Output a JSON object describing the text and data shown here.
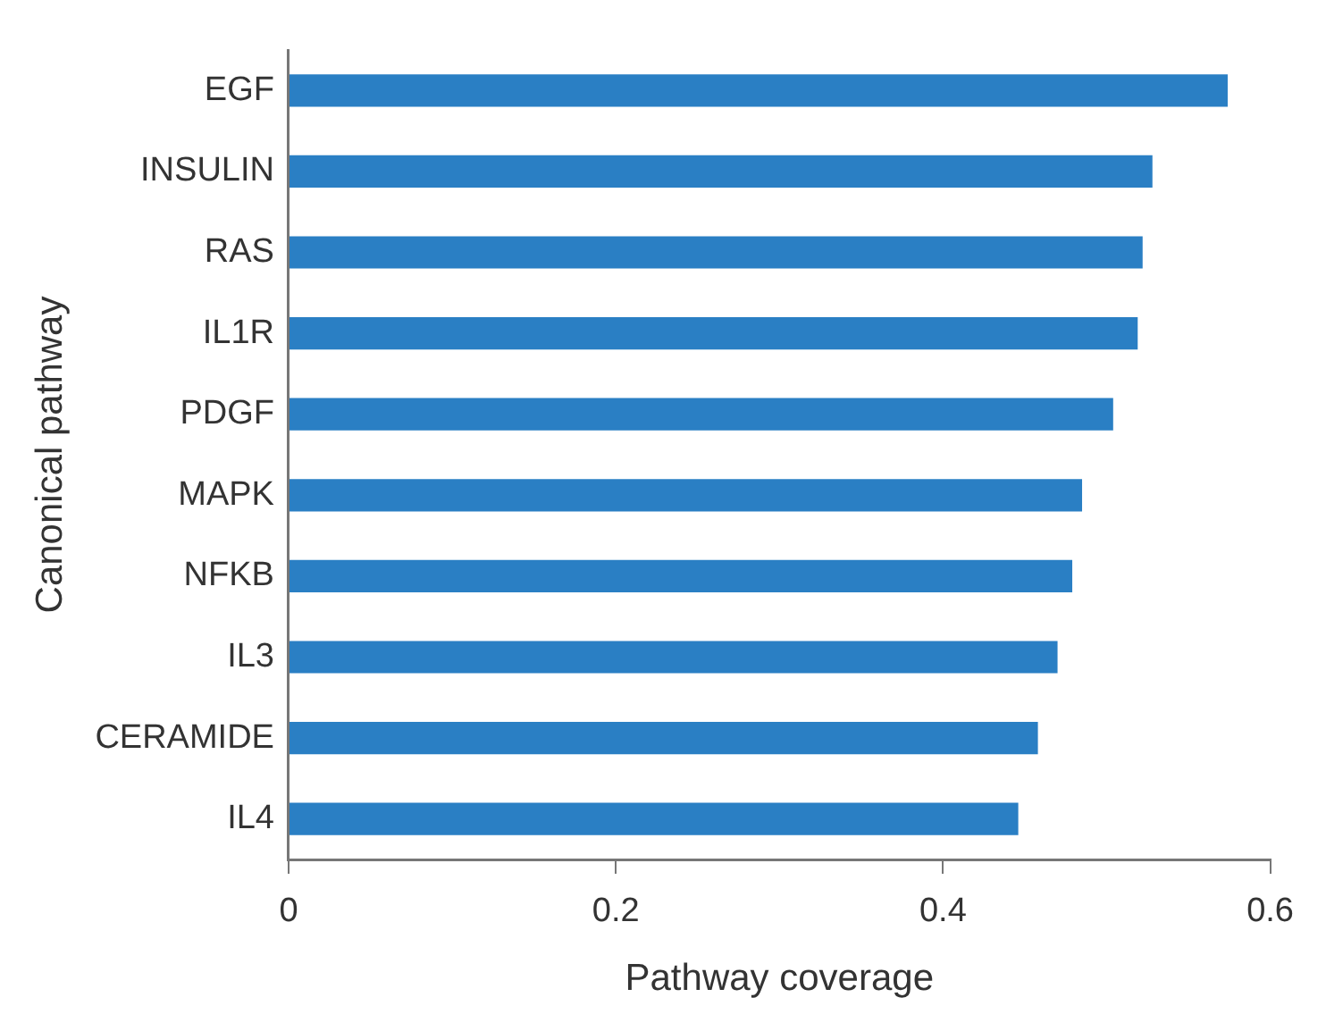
{
  "chart_data": {
    "type": "bar",
    "orientation": "horizontal",
    "xlabel": "Pathway coverage",
    "ylabel": "Canonical pathway",
    "categories": [
      "EGF",
      "INSULIN",
      "RAS",
      "IL1R",
      "PDGF",
      "MAPK",
      "NFKB",
      "IL3",
      "CERAMIDE",
      "IL4"
    ],
    "values": [
      0.574,
      0.528,
      0.522,
      0.519,
      0.504,
      0.485,
      0.479,
      0.47,
      0.458,
      0.446
    ],
    "color": "#2a7fc4",
    "xlim": [
      0,
      0.6
    ],
    "xticks": [
      0,
      0.2,
      0.4,
      0.6
    ],
    "grid": false,
    "legend": false
  }
}
